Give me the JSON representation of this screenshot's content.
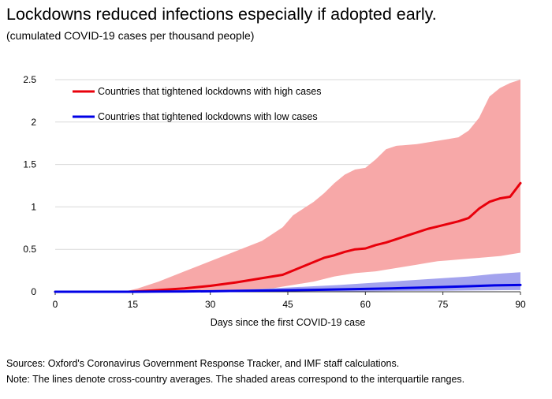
{
  "title": "Lockdowns reduced infections especially if adopted early.",
  "subtitle": "(cumulated COVID-19 cases per thousand people)",
  "sources": "Sources: Oxford's Coronavirus Government Response Tracker, and IMF staff calculations.",
  "note": "Note: The lines denote cross-country averages. The shaded areas correspond to the interquartile ranges.",
  "chart_data": {
    "type": "line",
    "xlabel": "Days since the first COVID-19 case",
    "ylabel": "",
    "xlim": [
      0,
      90
    ],
    "ylim": [
      0,
      2.5
    ],
    "x_ticks": [
      "0",
      "15",
      "30",
      "45",
      "60",
      "75",
      "90"
    ],
    "y_ticks": [
      "0",
      "0.5",
      "1",
      "1.5",
      "2",
      "2.5"
    ],
    "grid": true,
    "legend_position": "top-left",
    "series": [
      {
        "name": "Countries that tightened lockdowns with high cases",
        "color": "#e8000b",
        "band_color": "#f7a8a8",
        "x": [
          0,
          10,
          14,
          16,
          20,
          25,
          30,
          35,
          40,
          42,
          44,
          46,
          48,
          50,
          52,
          54,
          56,
          58,
          60,
          62,
          64,
          66,
          68,
          70,
          72,
          74,
          76,
          78,
          80,
          82,
          84,
          86,
          88,
          90
        ],
        "mean": [
          0,
          0,
          0,
          0.005,
          0.02,
          0.04,
          0.07,
          0.11,
          0.16,
          0.18,
          0.2,
          0.25,
          0.3,
          0.35,
          0.4,
          0.43,
          0.47,
          0.5,
          0.51,
          0.55,
          0.58,
          0.62,
          0.66,
          0.7,
          0.74,
          0.77,
          0.8,
          0.83,
          0.87,
          0.98,
          1.06,
          1.1,
          1.12,
          1.28
        ],
        "q3": [
          0,
          0,
          0.01,
          0.04,
          0.12,
          0.24,
          0.36,
          0.48,
          0.6,
          0.68,
          0.76,
          0.9,
          0.98,
          1.06,
          1.16,
          1.28,
          1.38,
          1.44,
          1.46,
          1.56,
          1.68,
          1.72,
          1.73,
          1.74,
          1.76,
          1.78,
          1.8,
          1.82,
          1.9,
          2.05,
          2.3,
          2.4,
          2.46,
          2.5
        ],
        "q1": [
          0,
          0,
          0,
          0,
          0,
          0.005,
          0.01,
          0.015,
          0.025,
          0.04,
          0.06,
          0.08,
          0.1,
          0.12,
          0.15,
          0.18,
          0.2,
          0.22,
          0.23,
          0.24,
          0.26,
          0.28,
          0.3,
          0.32,
          0.34,
          0.36,
          0.37,
          0.38,
          0.39,
          0.4,
          0.41,
          0.42,
          0.44,
          0.46
        ]
      },
      {
        "name": "Countries that tightened lockdowns with low cases",
        "color": "#0000e6",
        "band_color": "#a3a3ee",
        "x": [
          0,
          15,
          20,
          25,
          30,
          35,
          40,
          45,
          50,
          55,
          60,
          65,
          70,
          75,
          80,
          85,
          90
        ],
        "mean": [
          0,
          0,
          0.002,
          0.004,
          0.006,
          0.01,
          0.014,
          0.018,
          0.022,
          0.028,
          0.034,
          0.04,
          0.048,
          0.056,
          0.065,
          0.075,
          0.08
        ],
        "q3": [
          0,
          0,
          0.006,
          0.01,
          0.015,
          0.022,
          0.035,
          0.05,
          0.065,
          0.08,
          0.1,
          0.12,
          0.14,
          0.16,
          0.18,
          0.21,
          0.23
        ],
        "q1": [
          0,
          0,
          0,
          0,
          0,
          0,
          0,
          0,
          0,
          0,
          0.005,
          0.008,
          0.01,
          0.012,
          0.015,
          0.018,
          0.02
        ]
      }
    ]
  }
}
